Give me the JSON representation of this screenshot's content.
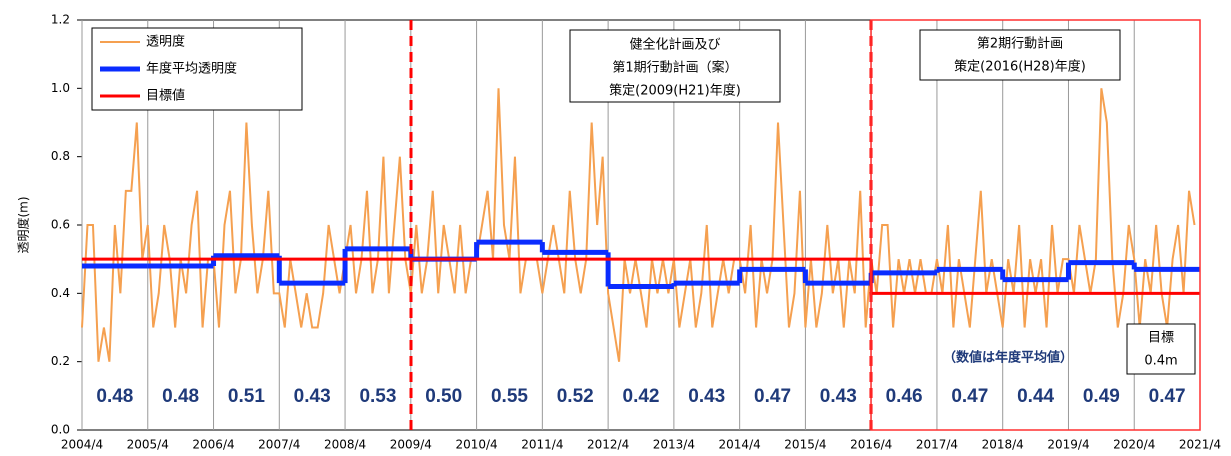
{
  "chart_data": {
    "type": "line",
    "y_label": "透明度(m)",
    "xlim": [
      0,
      204
    ],
    "xticks": [
      {
        "value": 0,
        "label": "2004/4"
      },
      {
        "value": 12,
        "label": "2005/4"
      },
      {
        "value": 24,
        "label": "2006/4"
      },
      {
        "value": 36,
        "label": "2007/4"
      },
      {
        "value": 48,
        "label": "2008/4"
      },
      {
        "value": 60,
        "label": "2009/4"
      },
      {
        "value": 72,
        "label": "2010/4"
      },
      {
        "value": 84,
        "label": "2011/4"
      },
      {
        "value": 96,
        "label": "2012/4"
      },
      {
        "value": 108,
        "label": "2013/4"
      },
      {
        "value": 120,
        "label": "2014/4"
      },
      {
        "value": 132,
        "label": "2015/4"
      },
      {
        "value": 144,
        "label": "2016/4"
      },
      {
        "value": 156,
        "label": "2017/4"
      },
      {
        "value": 168,
        "label": "2018/4"
      },
      {
        "value": 180,
        "label": "2019/4"
      },
      {
        "value": 192,
        "label": "2020/4"
      },
      {
        "value": 204,
        "label": "2021/4"
      }
    ],
    "ylim": [
      0,
      1.2
    ],
    "yticks": [
      {
        "value": 0,
        "label": "0.0"
      },
      0.2,
      0.4,
      0.6,
      0.8,
      {
        "value": 1,
        "label": "1.0"
      },
      1.2
    ],
    "grid": true,
    "series": [
      {
        "name": "透明度",
        "color": "#f5a050",
        "x": [
          0,
          1,
          2,
          3,
          4,
          5,
          6,
          7,
          8,
          9,
          10,
          11,
          12,
          13,
          14,
          15,
          16,
          17,
          18,
          19,
          20,
          21,
          22,
          23,
          24,
          25,
          26,
          27,
          28,
          29,
          30,
          31,
          32,
          33,
          34,
          35,
          36,
          37,
          38,
          39,
          40,
          41,
          42,
          43,
          44,
          45,
          46,
          47,
          48,
          49,
          50,
          51,
          52,
          53,
          54,
          55,
          56,
          57,
          58,
          59,
          60,
          61,
          62,
          63,
          64,
          65,
          66,
          67,
          68,
          69,
          70,
          71,
          72,
          73,
          74,
          75,
          76,
          77,
          78,
          79,
          80,
          81,
          82,
          83,
          84,
          85,
          86,
          87,
          88,
          89,
          90,
          91,
          92,
          93,
          94,
          95,
          96,
          97,
          98,
          99,
          100,
          101,
          102,
          103,
          104,
          105,
          106,
          107,
          108,
          109,
          110,
          111,
          112,
          113,
          114,
          115,
          116,
          117,
          118,
          119,
          120,
          121,
          122,
          123,
          124,
          125,
          126,
          127,
          128,
          129,
          130,
          131,
          132,
          133,
          134,
          135,
          136,
          137,
          138,
          139,
          140,
          141,
          142,
          143,
          144,
          145,
          146,
          147,
          148,
          149,
          150,
          151,
          152,
          153,
          154,
          155,
          156,
          157,
          158,
          159,
          160,
          161,
          162,
          163,
          164,
          165,
          166,
          167,
          168,
          169,
          170,
          171,
          172,
          173,
          174,
          175,
          176,
          177,
          178,
          179,
          180,
          181,
          182,
          183,
          184,
          185,
          186,
          187,
          188,
          189,
          190,
          191,
          192,
          193,
          194,
          195,
          196,
          197,
          198,
          199,
          200,
          201,
          202,
          203
        ],
        "values": [
          0.3,
          0.6,
          0.6,
          0.2,
          0.3,
          0.2,
          0.6,
          0.4,
          0.7,
          0.7,
          0.9,
          0.5,
          0.6,
          0.3,
          0.4,
          0.6,
          0.5,
          0.3,
          0.5,
          0.4,
          0.6,
          0.7,
          0.3,
          0.5,
          0.5,
          0.3,
          0.6,
          0.7,
          0.4,
          0.5,
          0.9,
          0.6,
          0.4,
          0.5,
          0.7,
          0.4,
          0.4,
          0.3,
          0.5,
          0.4,
          0.3,
          0.4,
          0.3,
          0.3,
          0.4,
          0.6,
          0.5,
          0.4,
          0.5,
          0.6,
          0.4,
          0.5,
          0.7,
          0.4,
          0.5,
          0.8,
          0.4,
          0.6,
          0.8,
          0.5,
          0.4,
          0.6,
          0.4,
          0.5,
          0.7,
          0.4,
          0.6,
          0.5,
          0.4,
          0.6,
          0.4,
          0.5,
          0.5,
          0.6,
          0.7,
          0.5,
          1.0,
          0.6,
          0.5,
          0.8,
          0.4,
          0.5,
          0.5,
          0.5,
          0.4,
          0.5,
          0.6,
          0.5,
          0.4,
          0.7,
          0.5,
          0.4,
          0.5,
          0.9,
          0.6,
          0.8,
          0.4,
          0.3,
          0.2,
          0.5,
          0.4,
          0.5,
          0.4,
          0.3,
          0.5,
          0.4,
          0.5,
          0.4,
          0.5,
          0.3,
          0.4,
          0.5,
          0.3,
          0.4,
          0.6,
          0.3,
          0.4,
          0.5,
          0.4,
          0.5,
          0.5,
          0.4,
          0.6,
          0.3,
          0.5,
          0.4,
          0.5,
          0.9,
          0.6,
          0.3,
          0.4,
          0.7,
          0.3,
          0.5,
          0.3,
          0.4,
          0.6,
          0.4,
          0.5,
          0.3,
          0.5,
          0.4,
          0.7,
          0.3,
          0.5,
          0.4,
          0.6,
          0.6,
          0.3,
          0.5,
          0.4,
          0.5,
          0.4,
          0.5,
          0.4,
          0.4,
          0.5,
          0.4,
          0.6,
          0.3,
          0.5,
          0.4,
          0.3,
          0.5,
          0.7,
          0.4,
          0.5,
          0.4,
          0.3,
          0.5,
          0.4,
          0.6,
          0.3,
          0.5,
          0.4,
          0.5,
          0.3,
          0.6,
          0.4,
          0.5,
          0.5,
          0.4,
          0.6,
          0.5,
          0.4,
          0.5,
          1.0,
          0.9,
          0.5,
          0.3,
          0.4,
          0.6,
          0.5,
          0.3,
          0.5,
          0.4,
          0.6,
          0.4,
          0.3,
          0.5,
          0.6,
          0.4,
          0.7,
          0.6
        ]
      },
      {
        "name": "年度平均透明度",
        "color": "#0a2cff",
        "step": true,
        "x": [
          0,
          12,
          24,
          36,
          48,
          60,
          72,
          84,
          96,
          108,
          120,
          132,
          144,
          156,
          168,
          180,
          192
        ],
        "values": [
          0.48,
          0.48,
          0.51,
          0.43,
          0.53,
          0.5,
          0.55,
          0.52,
          0.42,
          0.43,
          0.47,
          0.43,
          0.46,
          0.47,
          0.44,
          0.49,
          0.47
        ],
        "value_labels": [
          "0.48",
          "0.48",
          "0.51",
          "0.43",
          "0.53",
          "0.50",
          "0.55",
          "0.52",
          "0.42",
          "0.43",
          "0.47",
          "0.43",
          "0.46",
          "0.47",
          "0.44",
          "0.49",
          "0.47"
        ]
      },
      {
        "name": "目標値",
        "color": "#ff0000",
        "step": true,
        "x": [
          0,
          12,
          24,
          36,
          48,
          60,
          72,
          84,
          96,
          108,
          120,
          132,
          144,
          156,
          168,
          180,
          192
        ],
        "values": [
          0.5,
          0.5,
          0.5,
          0.5,
          0.5,
          0.5,
          0.5,
          0.5,
          0.5,
          0.5,
          0.5,
          0.5,
          0.4,
          0.4,
          0.4,
          0.4,
          0.4
        ]
      }
    ],
    "annotations": {
      "plan1": [
        "健全化計画及び",
        "第1期行動計画（案）",
        "策定(2009(H21)年度)"
      ],
      "plan2": [
        "第2期行動計画",
        "策定(2016(H28)年度)"
      ],
      "note": "（数値は年度平均値）",
      "target": [
        "目標",
        "0.4m"
      ]
    }
  }
}
